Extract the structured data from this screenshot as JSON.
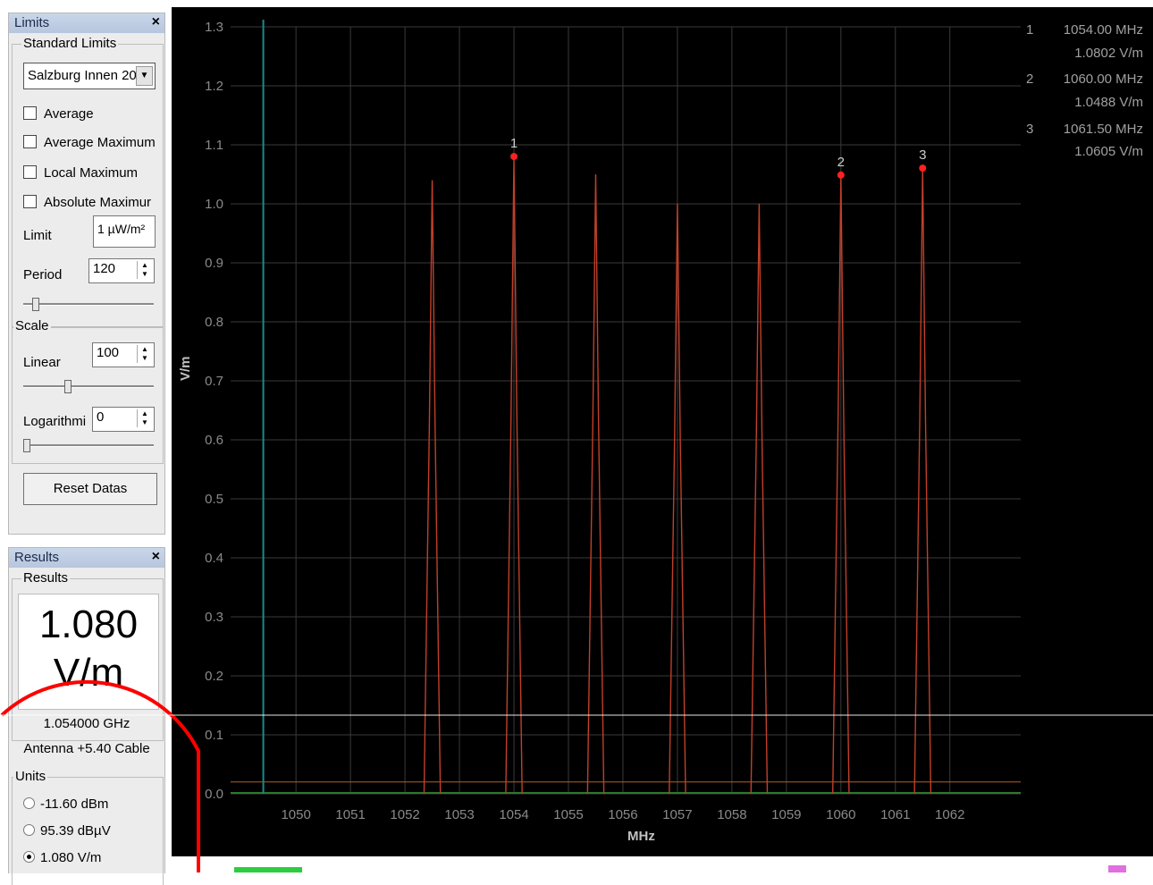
{
  "limits": {
    "title": "Limits",
    "close": "×",
    "standard_limits_label": "Standard Limits",
    "dropdown_value": "Salzburg Innen 20",
    "checkboxes": [
      "Average",
      "Average Maximum",
      "Local Maximum",
      "Absolute Maximur"
    ],
    "limit_label": "Limit",
    "limit_value": "1 µW/m²",
    "period_label": "Period",
    "period_value": "120",
    "scale_label": "Scale",
    "linear_label": "Linear",
    "linear_value": "100",
    "log_label": "Logarithmi",
    "log_value": "0",
    "reset_button": "Reset Datas"
  },
  "results": {
    "title": "Results",
    "close": "×",
    "group_label": "Results",
    "big_value": "1.080",
    "big_unit": "V/m",
    "frequency": "1.054000 GHz",
    "antenna": "Antenna +5.40 Cable",
    "units_label": "Units",
    "units": [
      {
        "label": "-11.60 dBm",
        "selected": false
      },
      {
        "label": "95.39 dBµV",
        "selected": false
      },
      {
        "label": "1.080 V/m",
        "selected": true
      }
    ]
  },
  "markers": [
    {
      "id": "1",
      "freq": "1054.00 MHz",
      "value": "1.0802 V/m"
    },
    {
      "id": "2",
      "freq": "1060.00 MHz",
      "value": "1.0488 V/m"
    },
    {
      "id": "3",
      "freq": "1061.50 MHz",
      "value": "1.0605 V/m"
    }
  ],
  "colors": {
    "background": "#000000",
    "grid": "#3a3a3a",
    "trace": "#c0402a",
    "marker": "#ff2020",
    "cursor": "#1a8a8a",
    "limit_line": "#b0602a",
    "annotation_circle": "#ff0000"
  },
  "chart_data": {
    "type": "line",
    "xlabel": "MHz",
    "ylabel": "V/m",
    "xlim": [
      1048.8,
      1063.3
    ],
    "ylim": [
      0,
      1.3
    ],
    "x_ticks": [
      "1050",
      "1051",
      "1052",
      "1053",
      "1054",
      "1055",
      "1056",
      "1057",
      "1058",
      "1059",
      "1060",
      "1061",
      "1062"
    ],
    "y_ticks": [
      "0.0",
      "0.1",
      "0.2",
      "0.3",
      "0.4",
      "0.5",
      "0.6",
      "0.7",
      "0.8",
      "0.9",
      "1.0",
      "1.1",
      "1.2",
      "1.3"
    ],
    "cursor_x": 1049.4,
    "grid": true,
    "limit_level": 0.02,
    "series": [
      {
        "peaks": [
          {
            "x": 1052.5,
            "y": 1.04
          },
          {
            "x": 1054.0,
            "y": 1.08
          },
          {
            "x": 1055.5,
            "y": 1.05
          },
          {
            "x": 1057.0,
            "y": 1.0
          },
          {
            "x": 1058.5,
            "y": 1.0
          },
          {
            "x": 1060.0,
            "y": 1.0488
          },
          {
            "x": 1061.5,
            "y": 1.0605
          }
        ]
      }
    ],
    "marker_points": [
      {
        "label": "1",
        "x": 1054.0,
        "y": 1.0802
      },
      {
        "label": "2",
        "x": 1060.0,
        "y": 1.0488
      },
      {
        "label": "3",
        "x": 1061.5,
        "y": 1.0605
      }
    ]
  }
}
